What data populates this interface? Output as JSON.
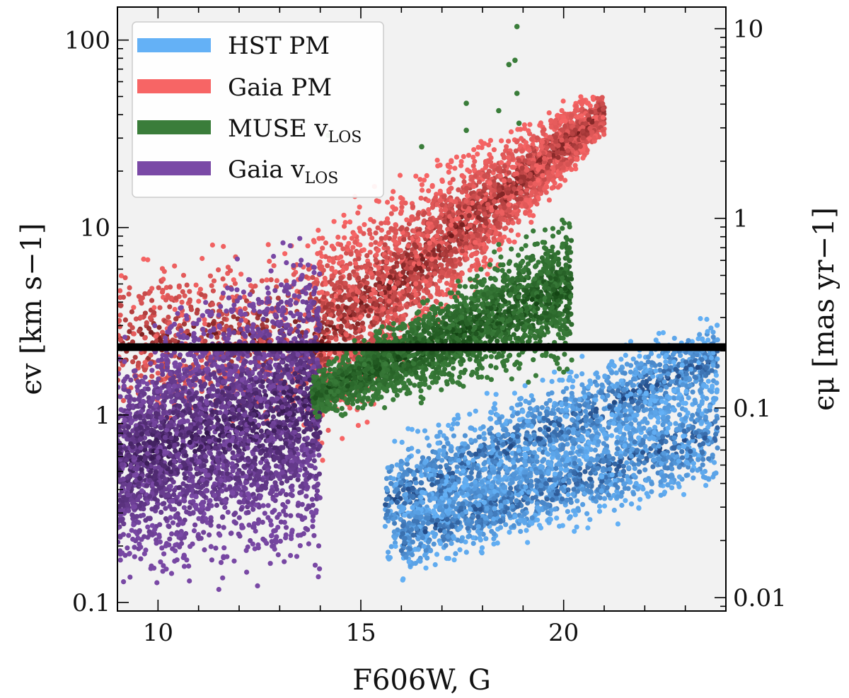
{
  "chart_data": {
    "type": "scatter",
    "title": "",
    "xlabel": "F606W, G",
    "ylabel_left": "ϵv [km s−1]",
    "ylabel_right": "ϵμ [mas yr−1]",
    "xlim": [
      9,
      24
    ],
    "ylim_left": [
      0.09,
      150
    ],
    "ylim_right": [
      0.0085,
      13
    ],
    "yscale": "log",
    "grid": false,
    "legend_position": "top-left",
    "x_ticks": [
      10,
      15,
      20
    ],
    "x_tick_labels": [
      "10",
      "15",
      "20"
    ],
    "y_left_ticks": [
      0.1,
      1,
      10,
      100
    ],
    "y_left_tick_labels": [
      "0.1",
      "1",
      "10",
      "100"
    ],
    "y_right_ticks": [
      0.01,
      0.1,
      1,
      10
    ],
    "y_right_tick_labels": [
      "0.01",
      "0.1",
      "1",
      "10"
    ],
    "reference_line": {
      "y": 2.3,
      "color": "#000000"
    },
    "background_color": "#f2f2f2",
    "series": [
      {
        "name": "HST PM",
        "color": "#64b1f6",
        "dark_color": "#0e2a63",
        "bands": [
          {
            "x_range": [
              15.6,
              23.8
            ],
            "y_low": [
              0.13,
              1.05
            ],
            "y_high": [
              0.9,
              4.0
            ],
            "count": 1700
          },
          {
            "x_range": [
              16.0,
              23.8
            ],
            "y_low": [
              0.12,
              0.35
            ],
            "y_high": [
              0.4,
              1.9
            ],
            "count": 1500
          }
        ]
      },
      {
        "name": "Gaia PM",
        "color": "#f76565",
        "dark_color": "#4a0606",
        "bands": [
          {
            "x_range": [
              9.0,
              14.0
            ],
            "y_low": [
              0.7,
              0.55
            ],
            "y_high": [
              9.0,
              14.0
            ],
            "count": 700
          },
          {
            "x_range": [
              13.8,
              21.0
            ],
            "y_low": [
              0.38,
              28.0
            ],
            "y_high": [
              14.0,
              60.0
            ],
            "count": 3200
          }
        ]
      },
      {
        "name": "MUSE v_LOS",
        "color": "#3a7d3a",
        "dark_color": "#093609",
        "bands": [
          {
            "x_range": [
              13.8,
              20.2
            ],
            "y_low": [
              0.9,
              1.5
            ],
            "y_high": [
              1.8,
              16.0
            ],
            "count": 2300
          }
        ],
        "outliers": [
          {
            "x": 18.85,
            "y": 118
          },
          {
            "x": 18.8,
            "y": 78
          },
          {
            "x": 18.65,
            "y": 74
          },
          {
            "x": 18.85,
            "y": 52
          },
          {
            "x": 17.6,
            "y": 46
          },
          {
            "x": 18.4,
            "y": 42
          },
          {
            "x": 17.6,
            "y": 33
          },
          {
            "x": 18.9,
            "y": 36
          },
          {
            "x": 16.5,
            "y": 27
          },
          {
            "x": 14.2,
            "y": 31
          }
        ]
      },
      {
        "name": "Gaia v_LOS",
        "color": "#7a49a6",
        "dark_color": "#230b3a",
        "bands": [
          {
            "x_range": [
              9.0,
              14.0
            ],
            "y_low": [
              0.1,
              0.1
            ],
            "y_high": [
              3.0,
              15.0
            ],
            "count": 3200
          }
        ]
      }
    ]
  },
  "legend": {
    "items": [
      {
        "label": "HST PM",
        "sub": "",
        "color": "#64b1f6"
      },
      {
        "label": "Gaia PM",
        "sub": "",
        "color": "#f76565"
      },
      {
        "label": "MUSE v",
        "sub": "LOS",
        "color": "#3a7d3a"
      },
      {
        "label": "Gaia v",
        "sub": "LOS",
        "color": "#7a49a6"
      }
    ]
  }
}
